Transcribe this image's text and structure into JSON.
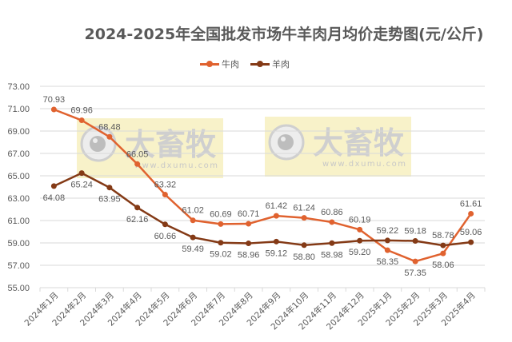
{
  "chart_data": {
    "type": "line",
    "title": "2024-2025年全国批发市场牛羊肉月均价走势图(元/公斤)",
    "xlabel": "",
    "ylabel": "",
    "ylim": [
      55,
      73
    ],
    "yticks": [
      "55.00",
      "57.00",
      "59.00",
      "61.00",
      "63.00",
      "65.00",
      "67.00",
      "69.00",
      "71.00",
      "73.00"
    ],
    "grid": true,
    "legend_position": "top",
    "categories": [
      "2024年1月",
      "2024年2月",
      "2024年3月",
      "2024年4月",
      "2024年5月",
      "2024年6月",
      "2024年7月",
      "2024年8月",
      "2024年9月",
      "2024年10月",
      "2024年11月",
      "2024年12月",
      "2025年1月",
      "2025年2月",
      "2025年3月",
      "2025年4月"
    ],
    "series": [
      {
        "name": "牛肉",
        "color": "#E0622F",
        "values": [
          70.93,
          69.96,
          68.48,
          66.05,
          63.32,
          61.02,
          60.69,
          60.71,
          61.42,
          61.24,
          60.86,
          60.19,
          58.35,
          57.35,
          58.06,
          61.61
        ]
      },
      {
        "name": "羊肉",
        "color": "#843A16",
        "values": [
          64.08,
          65.24,
          63.95,
          62.16,
          60.66,
          59.49,
          59.02,
          58.96,
          59.12,
          58.8,
          58.98,
          59.2,
          59.22,
          59.18,
          58.78,
          59.06
        ]
      }
    ],
    "label_positions": {
      "牛肉": [
        "above",
        "above",
        "above",
        "above",
        "above",
        "above",
        "above",
        "above",
        "above",
        "above",
        "above",
        "above",
        "below",
        "below",
        "below",
        "above"
      ],
      "羊肉": [
        "below",
        "below",
        "below",
        "below",
        "below",
        "below",
        "below",
        "below",
        "below",
        "below",
        "below",
        "below",
        "above",
        "above",
        "above",
        "above"
      ]
    }
  },
  "watermark": {
    "brand_text": "大畜牧",
    "url_text": "www.dxumu.com",
    "bg_color": "#F7F0C0"
  },
  "axis_color": "#D9D9D9",
  "text_color": "#595959"
}
